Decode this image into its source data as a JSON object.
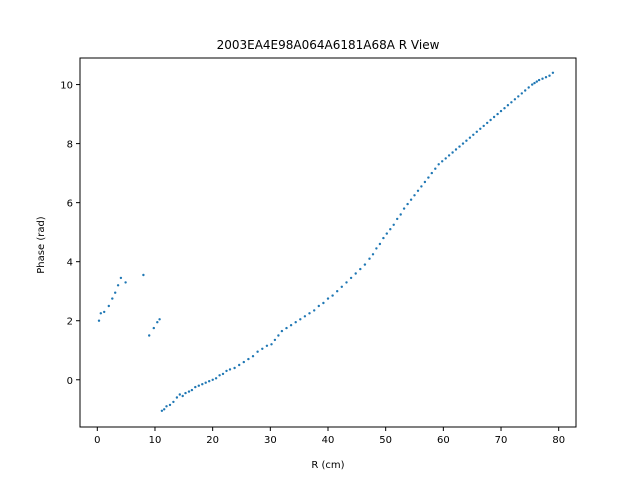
{
  "chart_data": {
    "type": "scatter",
    "title": "2003EA4E98A064A6181A68A R View",
    "xlabel": "R (cm)",
    "ylabel": "Phase (rad)",
    "xlim": [
      -3,
      83
    ],
    "ylim": [
      -1.6,
      10.9
    ],
    "xticks": [
      "0",
      "10",
      "20",
      "30",
      "40",
      "50",
      "60",
      "70",
      "80"
    ],
    "yticks": [
      "0",
      "2",
      "4",
      "6",
      "8",
      "10"
    ],
    "marker_color": "#1f77b4",
    "grid": false,
    "series": [
      {
        "x": [
          0.3,
          0.6,
          1.2,
          2.0,
          2.6,
          3.1,
          3.6,
          4.1,
          4.9,
          8.0,
          9.0,
          9.8,
          10.4,
          10.8,
          11.2,
          11.6,
          12.0,
          12.6,
          13.2,
          13.8,
          14.3,
          14.8,
          15.3,
          15.9,
          16.4,
          17.0,
          17.6,
          18.2,
          18.8,
          19.4,
          20.0,
          20.6,
          21.2,
          21.8,
          22.4,
          23.0,
          23.8,
          24.6,
          25.4,
          26.2,
          27.0,
          27.8,
          28.6,
          29.4,
          30.2,
          30.8,
          31.4,
          32.0,
          32.8,
          33.6,
          34.4,
          35.2,
          36.0,
          36.8,
          37.6,
          38.4,
          39.2,
          40.0,
          40.8,
          41.6,
          42.4,
          43.2,
          44.0,
          44.8,
          45.6,
          46.4,
          47.2,
          47.8,
          48.4,
          49.0,
          49.6,
          50.2,
          50.8,
          51.4,
          52.0,
          52.6,
          53.2,
          53.8,
          54.4,
          55.0,
          55.6,
          56.2,
          56.8,
          57.4,
          58.0,
          58.6,
          59.2,
          59.8,
          60.4,
          61.0,
          61.6,
          62.2,
          62.8,
          63.4,
          64.0,
          64.6,
          65.2,
          65.8,
          66.4,
          67.0,
          67.6,
          68.2,
          68.8,
          69.4,
          70.0,
          70.6,
          71.2,
          71.8,
          72.4,
          73.0,
          73.6,
          74.2,
          74.8,
          75.4,
          75.8,
          76.2,
          76.6,
          77.2,
          77.8,
          78.4,
          79.0
        ],
        "y": [
          2.0,
          2.25,
          2.3,
          2.5,
          2.75,
          2.95,
          3.2,
          3.45,
          3.3,
          3.55,
          1.5,
          1.75,
          1.95,
          2.05,
          -1.05,
          -1.0,
          -0.9,
          -0.85,
          -0.75,
          -0.6,
          -0.5,
          -0.55,
          -0.45,
          -0.4,
          -0.35,
          -0.25,
          -0.2,
          -0.15,
          -0.1,
          -0.05,
          0.0,
          0.05,
          0.15,
          0.2,
          0.3,
          0.35,
          0.4,
          0.5,
          0.6,
          0.7,
          0.8,
          0.95,
          1.05,
          1.15,
          1.2,
          1.35,
          1.5,
          1.65,
          1.75,
          1.85,
          1.95,
          2.05,
          2.15,
          2.25,
          2.35,
          2.5,
          2.6,
          2.75,
          2.85,
          3.0,
          3.15,
          3.3,
          3.45,
          3.6,
          3.75,
          3.9,
          4.1,
          4.25,
          4.45,
          4.6,
          4.8,
          4.95,
          5.1,
          5.25,
          5.45,
          5.6,
          5.8,
          5.95,
          6.1,
          6.25,
          6.4,
          6.55,
          6.7,
          6.85,
          7.0,
          7.15,
          7.3,
          7.4,
          7.5,
          7.6,
          7.7,
          7.8,
          7.9,
          8.0,
          8.1,
          8.2,
          8.3,
          8.4,
          8.5,
          8.6,
          8.7,
          8.8,
          8.9,
          9.0,
          9.1,
          9.2,
          9.3,
          9.4,
          9.5,
          9.6,
          9.7,
          9.8,
          9.9,
          10.0,
          10.05,
          10.1,
          10.15,
          10.2,
          10.25,
          10.3,
          10.4
        ]
      }
    ]
  }
}
